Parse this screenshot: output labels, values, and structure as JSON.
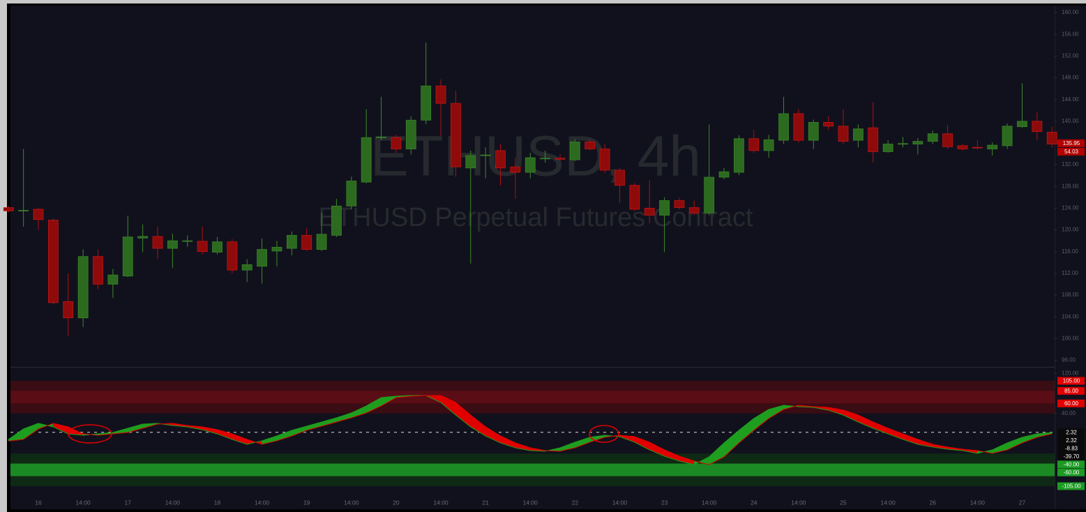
{
  "chart_data": [
    {
      "type": "candlestick",
      "title": "ETHUSD, 4h",
      "subtitle": "ETHUSD Perpetual Futures Contract",
      "categories": [
        null,
        null,
        "16",
        null,
        null,
        "14:00",
        null,
        null,
        "17",
        null,
        null,
        "14:00",
        null,
        null,
        "18",
        null,
        null,
        "14:00",
        null,
        null,
        "19",
        null,
        null,
        "14:00",
        null,
        null,
        "20",
        null,
        null,
        "14:00",
        null,
        null,
        "21",
        null,
        null,
        "14:00",
        null,
        null,
        "22",
        null,
        null,
        "14:00",
        null,
        null,
        "23",
        null,
        null,
        "14:00",
        null,
        null,
        "24",
        null,
        null,
        "14:00",
        null,
        null,
        "25",
        null,
        null,
        "14:00",
        null,
        null,
        "26",
        null,
        null,
        "14:00",
        null,
        null,
        "27",
        null,
        null
      ],
      "open": [
        124.1,
        123.5,
        123.8,
        121.8,
        106.8,
        103.8,
        115.1,
        110.0,
        111.5,
        118.5,
        118.8,
        116.6,
        117.9,
        117.9,
        115.9,
        117.8,
        112.6,
        113.3,
        116.1,
        116.6,
        119.0,
        116.4,
        119.0,
        124.4,
        128.8,
        137.0,
        137.0,
        134.9,
        140.2,
        146.5,
        143.3,
        131.4,
        133.7,
        134.6,
        131.6,
        130.6,
        133.2,
        133.2,
        132.9,
        136.2,
        134.9,
        131.0,
        128.2,
        124.0,
        122.7,
        125.4,
        124.1,
        123.1,
        129.7,
        130.6,
        136.8,
        134.6,
        136.5,
        141.4,
        136.5,
        139.8,
        139.1,
        136.5,
        138.8,
        134.4,
        135.9,
        135.8,
        136.3,
        137.7,
        135.5,
        135.2,
        134.9,
        135.5,
        139.0,
        140.0,
        138.0
      ],
      "high": [
        124.4,
        134.9,
        124.0,
        122.1,
        112.0,
        116.4,
        116.4,
        112.8,
        122.6,
        121.0,
        120.6,
        119.3,
        119.0,
        120.6,
        118.7,
        118.3,
        114.6,
        118.4,
        118.0,
        119.7,
        120.3,
        123.1,
        125.7,
        129.8,
        142.2,
        144.5,
        137.5,
        140.9,
        154.5,
        147.7,
        145.6,
        134.6,
        135.2,
        135.8,
        133.3,
        134.2,
        134.6,
        133.9,
        136.7,
        136.7,
        135.8,
        131.4,
        128.6,
        129.1,
        126.0,
        125.9,
        125.4,
        139.4,
        131.4,
        137.4,
        138.4,
        137.5,
        144.5,
        142.2,
        140.3,
        140.9,
        142.2,
        139.4,
        143.5,
        136.5,
        137.1,
        136.9,
        138.3,
        139.3,
        135.8,
        136.5,
        136.1,
        139.6,
        147.0,
        141.6,
        139.0
      ],
      "low": [
        123.2,
        120.6,
        120.0,
        106.3,
        100.5,
        102.1,
        109.1,
        107.5,
        111.3,
        115.9,
        114.6,
        113.0,
        116.9,
        115.5,
        115.5,
        112.0,
        110.4,
        110.1,
        113.3,
        115.3,
        116.1,
        116.1,
        118.7,
        123.8,
        128.6,
        136.5,
        134.2,
        133.9,
        139.5,
        137.3,
        129.8,
        113.8,
        129.5,
        128.2,
        125.7,
        129.5,
        132.4,
        132.7,
        132.7,
        134.6,
        130.5,
        125.0,
        123.5,
        121.2,
        115.9,
        123.8,
        122.7,
        122.7,
        129.3,
        130.1,
        134.2,
        133.3,
        135.8,
        136.1,
        134.9,
        138.4,
        135.8,
        135.2,
        132.4,
        134.2,
        135.2,
        133.9,
        135.8,
        134.9,
        134.6,
        134.8,
        133.7,
        134.9,
        138.8,
        136.5,
        135.2
      ],
      "close": [
        123.5,
        123.6,
        121.9,
        106.6,
        103.8,
        115.1,
        110.0,
        111.7,
        118.7,
        118.8,
        116.6,
        118.0,
        118.0,
        116.0,
        117.8,
        112.6,
        113.6,
        116.4,
        116.8,
        119.0,
        116.4,
        119.2,
        124.4,
        129.0,
        137.0,
        137.1,
        134.9,
        140.2,
        146.5,
        143.3,
        131.6,
        133.7,
        133.8,
        131.4,
        130.6,
        133.3,
        133.2,
        133.0,
        136.2,
        134.9,
        131.0,
        128.2,
        123.8,
        122.7,
        125.4,
        124.1,
        123.1,
        129.7,
        130.7,
        136.8,
        134.6,
        136.6,
        141.4,
        136.5,
        139.8,
        139.1,
        136.3,
        138.6,
        134.4,
        135.8,
        135.9,
        136.3,
        137.7,
        135.3,
        134.9,
        135.1,
        135.6,
        139.1,
        140.0,
        138.1,
        135.8
      ],
      "up_color": "#2c6a1f",
      "down_color": "#8f0b0b",
      "ylim": [
        94.9,
        161.3
      ],
      "yticks": [
        {
          "value": 160,
          "label": "160.00"
        },
        {
          "value": 156,
          "label": "156.00"
        },
        {
          "value": 152,
          "label": "152.00"
        },
        {
          "value": 148,
          "label": "148.00"
        },
        {
          "value": 144,
          "label": "144.00"
        },
        {
          "value": 140,
          "label": "140.00"
        },
        {
          "value": 136,
          "label": "136.00"
        },
        {
          "value": 132,
          "label": "132.00"
        },
        {
          "value": 128,
          "label": "128.00"
        },
        {
          "value": 124,
          "label": "124.00"
        },
        {
          "value": 120,
          "label": "120.00"
        },
        {
          "value": 116,
          "label": "116.00"
        },
        {
          "value": 112,
          "label": "112.00"
        },
        {
          "value": 108,
          "label": "108.00"
        },
        {
          "value": 104,
          "label": "104.00"
        },
        {
          "value": 100,
          "label": "100.00"
        },
        {
          "value": 96,
          "label": "96.00"
        }
      ],
      "price_labels": [
        {
          "value": 135.95,
          "label": "135.95",
          "color": "#b30000"
        },
        {
          "label": "54.03",
          "color": "#b30000"
        }
      ]
    },
    {
      "type": "oscillator",
      "series": [
        {
          "color": "#1e9e1e",
          "values": [
            -11.8,
            9.0,
            20.2,
            13.2,
            -0.7,
            -3.5,
            -0.7,
            2.1,
            10.4,
            18.8,
            20.2,
            16.0,
            13.2,
            7.6,
            -0.7,
            -11.8,
            -21.6,
            -14.6,
            -4.9,
            6.3,
            14.6,
            22.9,
            31.3,
            41.0,
            54.9,
            71.6,
            74.4,
            75.8,
            75.8,
            61.9,
            36.8,
            13.2,
            -4.9,
            -18.8,
            -28.5,
            -34.1,
            -35.4,
            -28.5,
            -17.4,
            -7.6,
            -3.5,
            -6.3,
            -17.4,
            -32.7,
            -45.2,
            -54.9,
            -61.9,
            -46.6,
            -18.8,
            6.3,
            29.9,
            47.9,
            56.3,
            53.5,
            52.1,
            46.6,
            36.8,
            22.9,
            10.4,
            -0.7,
            -11.8,
            -21.6,
            -27.1,
            -31.3,
            -34.1,
            -39.6,
            -32.7,
            -18.8,
            -7.6,
            -0.7,
            2.1
          ]
        },
        {
          "color": "#e00000",
          "values": [
            -15.0,
            -11.8,
            9.0,
            20.2,
            13.2,
            -0.7,
            -3.5,
            -0.7,
            2.1,
            10.4,
            18.8,
            20.2,
            16.0,
            13.2,
            7.6,
            -0.7,
            -11.8,
            -21.6,
            -14.6,
            -4.9,
            6.3,
            14.6,
            22.9,
            31.3,
            41.0,
            54.9,
            71.6,
            74.4,
            75.8,
            75.8,
            61.9,
            36.8,
            13.2,
            -4.9,
            -18.8,
            -28.5,
            -34.1,
            -35.4,
            -28.5,
            -17.4,
            -7.6,
            -3.5,
            -6.3,
            -17.4,
            -32.7,
            -45.2,
            -54.9,
            -61.9,
            -46.6,
            -18.8,
            6.3,
            29.9,
            47.9,
            56.3,
            53.5,
            52.1,
            46.6,
            36.8,
            22.9,
            10.4,
            -0.7,
            -11.8,
            -21.6,
            -27.1,
            -31.3,
            -34.1,
            -39.6,
            -32.7,
            -18.8,
            -7.6,
            -0.7
          ]
        }
      ],
      "bands": [
        {
          "range": [
            40,
            105
          ],
          "color": "#3a0c14"
        },
        {
          "range": [
            60,
            85
          ],
          "color": "#5a0d15"
        },
        {
          "range": [
            -105,
            -40
          ],
          "color": "#0f2a14"
        },
        {
          "range": [
            -85,
            -60
          ],
          "color": "#1c8a24"
        }
      ],
      "hline": 2.32,
      "ylim": [
        -119,
        130
      ],
      "yticks": [
        {
          "value": 120,
          "label": "120.00"
        },
        {
          "value": 40,
          "label": "40.00"
        }
      ],
      "price_labels": [
        {
          "value": 105,
          "label": "105.00",
          "color": "#e00000"
        },
        {
          "value": 85,
          "label": "85.00",
          "color": "#e00000"
        },
        {
          "value": 60,
          "label": "60.00",
          "color": "#e00000"
        },
        {
          "value": 2.32,
          "label": "2.32",
          "color": "#0a0a0a"
        },
        {
          "value": 2.32,
          "label": "2.32",
          "color": "#0a0a0a"
        },
        {
          "value": -8.83,
          "label": "-8.83",
          "color": "#0a0a0a"
        },
        {
          "value": -39.7,
          "label": "-39.70",
          "color": "#0a0a0a"
        },
        {
          "value": -40,
          "label": "-40.00",
          "color": "#1c9a24"
        },
        {
          "value": -60,
          "label": "-60.00",
          "color": "#1c9a24"
        },
        {
          "value": -105,
          "label": "-105.00",
          "color": "#1c9a24"
        }
      ]
    }
  ]
}
